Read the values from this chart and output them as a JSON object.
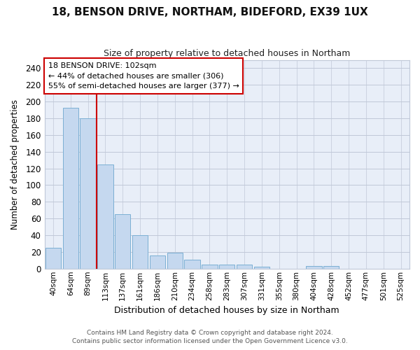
{
  "title1": "18, BENSON DRIVE, NORTHAM, BIDEFORD, EX39 1UX",
  "title2": "Size of property relative to detached houses in Northam",
  "xlabel": "Distribution of detached houses by size in Northam",
  "ylabel": "Number of detached properties",
  "categories": [
    "40sqm",
    "64sqm",
    "89sqm",
    "113sqm",
    "137sqm",
    "161sqm",
    "186sqm",
    "210sqm",
    "234sqm",
    "258sqm",
    "283sqm",
    "307sqm",
    "331sqm",
    "355sqm",
    "380sqm",
    "404sqm",
    "428sqm",
    "452sqm",
    "477sqm",
    "501sqm",
    "525sqm"
  ],
  "values": [
    25,
    193,
    180,
    125,
    65,
    40,
    16,
    19,
    11,
    5,
    5,
    5,
    2,
    0,
    0,
    3,
    3,
    0,
    0,
    0,
    0
  ],
  "bar_color": "#c5d8ef",
  "bar_edge_color": "#7bafd4",
  "vline_x": 2.5,
  "vline_color": "#cc0000",
  "annotation_title": "18 BENSON DRIVE: 102sqm",
  "annotation_line2": "← 44% of detached houses are smaller (306)",
  "annotation_line3": "55% of semi-detached houses are larger (377) →",
  "annotation_box_color": "#ffffff",
  "annotation_box_edge": "#cc0000",
  "ylim": [
    0,
    250
  ],
  "yticks": [
    0,
    20,
    40,
    60,
    80,
    100,
    120,
    140,
    160,
    180,
    200,
    220,
    240
  ],
  "footer1": "Contains HM Land Registry data © Crown copyright and database right 2024.",
  "footer2": "Contains public sector information licensed under the Open Government Licence v3.0.",
  "fig_bg_color": "#ffffff",
  "plot_bg_color": "#e8eef8",
  "grid_color": "#c0c8d8"
}
